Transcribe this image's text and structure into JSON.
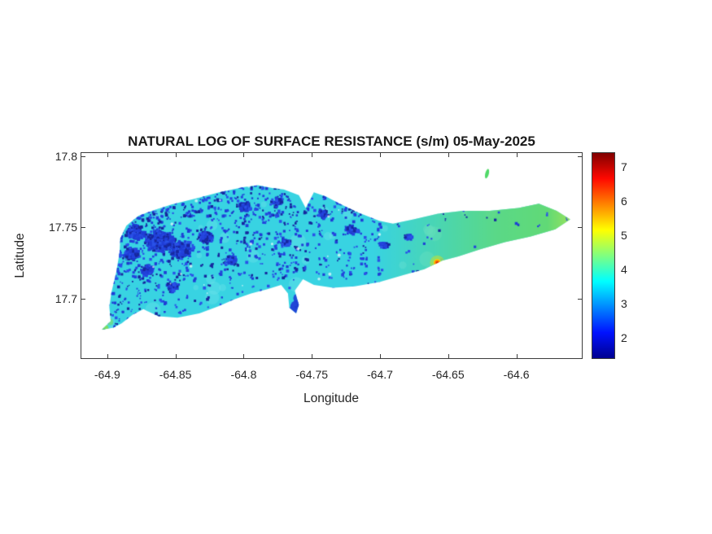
{
  "chart_data": {
    "type": "heatmap",
    "title": "NATURAL LOG OF SURFACE RESISTANCE (s/m) 05-May-2025",
    "xlabel": "Longitude",
    "ylabel": "Latitude",
    "xlim": [
      -64.919,
      -64.552
    ],
    "ylim": [
      17.658,
      17.802
    ],
    "xticks": [
      -64.9,
      -64.85,
      -64.8,
      -64.75,
      -64.7,
      -64.65,
      -64.6
    ],
    "yticks": [
      17.8,
      17.75,
      17.7
    ],
    "grid": false,
    "colorbar": {
      "position": "right",
      "colormap": "jet",
      "vmin": 1.4,
      "vmax": 7.4,
      "ticks": [
        2,
        3,
        4,
        5,
        6,
        7
      ],
      "gradient_stops": [
        {
          "pos": 0.0,
          "color": "#000090"
        },
        {
          "pos": 0.125,
          "color": "#0012ff"
        },
        {
          "pos": 0.375,
          "color": "#00ffff"
        },
        {
          "pos": 0.625,
          "color": "#ffff00"
        },
        {
          "pos": 0.875,
          "color": "#ff0800"
        },
        {
          "pos": 1.0,
          "color": "#800000"
        }
      ]
    },
    "field_summary": {
      "typical_value_main_island": 3.2,
      "low_value_speckles": 2.0,
      "east_end_value": 4.5,
      "hotspot": {
        "lon": -64.658,
        "lat": 17.725,
        "value": 7.0
      }
    },
    "island_outline": [
      [
        -64.904,
        17.678
      ],
      [
        -64.8975,
        17.684
      ],
      [
        -64.8985,
        17.694
      ],
      [
        -64.897,
        17.704
      ],
      [
        -64.8935,
        17.718
      ],
      [
        -64.891,
        17.732
      ],
      [
        -64.8905,
        17.742
      ],
      [
        -64.886,
        17.751
      ],
      [
        -64.877,
        17.758
      ],
      [
        -64.8655,
        17.762
      ],
      [
        -64.8525,
        17.766
      ],
      [
        -64.8355,
        17.77
      ],
      [
        -64.818,
        17.7745
      ],
      [
        -64.8005,
        17.778
      ],
      [
        -64.7895,
        17.7795
      ],
      [
        -64.779,
        17.7775
      ],
      [
        -64.7705,
        17.7765
      ],
      [
        -64.7595,
        17.7725
      ],
      [
        -64.7545,
        17.7635
      ],
      [
        -64.7485,
        17.7745
      ],
      [
        -64.7395,
        17.7715
      ],
      [
        -64.7295,
        17.7665
      ],
      [
        -64.7165,
        17.7605
      ],
      [
        -64.7005,
        17.7545
      ],
      [
        -64.6905,
        17.7525
      ],
      [
        -64.6755,
        17.7555
      ],
      [
        -64.6575,
        17.7595
      ],
      [
        -64.6395,
        17.7615
      ],
      [
        -64.6195,
        17.7615
      ],
      [
        -64.5985,
        17.7635
      ],
      [
        -64.5835,
        17.7665
      ],
      [
        -64.5705,
        17.7615
      ],
      [
        -64.5605,
        17.7555
      ],
      [
        -64.5715,
        17.7485
      ],
      [
        -64.5895,
        17.7435
      ],
      [
        -64.6085,
        17.7395
      ],
      [
        -64.6265,
        17.7345
      ],
      [
        -64.6425,
        17.7295
      ],
      [
        -64.6545,
        17.7265
      ],
      [
        -64.6675,
        17.7205
      ],
      [
        -64.6825,
        17.7165
      ],
      [
        -64.7005,
        17.7115
      ],
      [
        -64.7185,
        17.7085
      ],
      [
        -64.7345,
        17.7075
      ],
      [
        -64.7485,
        17.7095
      ],
      [
        -64.7565,
        17.7135
      ],
      [
        -64.7625,
        17.7055
      ],
      [
        -64.7595,
        17.6955
      ],
      [
        -64.7615,
        17.6895
      ],
      [
        -64.7665,
        17.6935
      ],
      [
        -64.7675,
        17.7035
      ],
      [
        -64.7725,
        17.7095
      ],
      [
        -64.7825,
        17.7065
      ],
      [
        -64.7945,
        17.7035
      ],
      [
        -64.8065,
        17.6995
      ],
      [
        -64.8185,
        17.6945
      ],
      [
        -64.8325,
        17.6895
      ],
      [
        -64.8485,
        17.6865
      ],
      [
        -64.8625,
        17.6875
      ],
      [
        -64.8735,
        17.6925
      ],
      [
        -64.8815,
        17.6885
      ],
      [
        -64.8895,
        17.6825
      ],
      [
        -64.8955,
        17.6795
      ]
    ],
    "dense_low_regions": [
      {
        "lon": -64.862,
        "lat": 17.741,
        "r": 20
      },
      {
        "lon": -64.847,
        "lat": 17.735,
        "r": 16
      },
      {
        "lon": -64.88,
        "lat": 17.747,
        "r": 13
      },
      {
        "lon": -64.829,
        "lat": 17.744,
        "r": 11
      },
      {
        "lon": -64.871,
        "lat": 17.721,
        "r": 9
      },
      {
        "lon": -64.853,
        "lat": 17.709,
        "r": 9
      },
      {
        "lon": -64.883,
        "lat": 17.732,
        "r": 11
      },
      {
        "lon": -64.8,
        "lat": 17.765,
        "r": 9
      },
      {
        "lon": -64.776,
        "lat": 17.769,
        "r": 7
      },
      {
        "lon": -64.722,
        "lat": 17.749,
        "r": 8
      },
      {
        "lon": -64.698,
        "lat": 17.738,
        "r": 7
      },
      {
        "lon": -64.68,
        "lat": 17.744,
        "r": 6
      },
      {
        "lon": -64.742,
        "lat": 17.76,
        "r": 7
      },
      {
        "lon": -64.81,
        "lat": 17.728,
        "r": 8
      },
      {
        "lon": -64.77,
        "lat": 17.74,
        "r": 7
      }
    ],
    "offshore_islet": {
      "lon": -64.6215,
      "lat": 17.7875,
      "value": 4.2
    },
    "speckle_density_by_lon": [
      {
        "lon_max": -64.862,
        "p": 0.85
      },
      {
        "lon_max": -64.835,
        "p": 0.7
      },
      {
        "lon_max": -64.76,
        "p": 0.5
      },
      {
        "lon_max": -64.7,
        "p": 0.4
      },
      {
        "lon_max": -64.655,
        "p": 0.13
      },
      {
        "lon_max": -64.55,
        "p": 0.03
      }
    ],
    "speckle_lat_modifiers": {
      "north_lat": 17.757,
      "north_factor": 1.3,
      "south_lat": 17.714,
      "south_factor": 0.5
    },
    "colors": {
      "base": "#38d3e2",
      "light_patch": "#6ce4ec",
      "speckle_blues": [
        "#1f3ed6",
        "#2a52e8",
        "#16289f",
        "#2443dd"
      ],
      "east_green": "#63da71",
      "tip_green": "#a9e554",
      "tail_green": "#7ade5e",
      "islet_green": "#50d968",
      "hotspot_halo": "#9ade5d",
      "hotspot_yellow": "#ffd400",
      "hotspot_orange": "#ff7a00",
      "hotspot_core": "#d82400",
      "peninsula_blue": "#1f3ed6",
      "axis_color": "#3c3c3c",
      "text_color": "#262626",
      "background": "#ffffff"
    }
  }
}
